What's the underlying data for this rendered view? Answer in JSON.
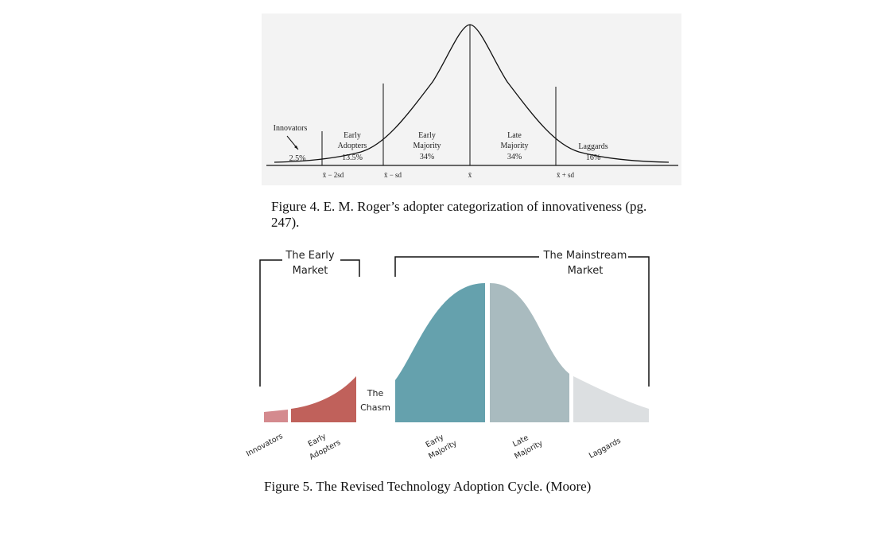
{
  "figure4": {
    "caption": "Figure 4. E. M. Roger’s adopter categorization of innovativeness (pg. 247).",
    "segments": [
      {
        "label_lines": [
          "Innovators"
        ],
        "percent": "2.5%"
      },
      {
        "label_lines": [
          "Early",
          "Adopters"
        ],
        "percent": "13.5%"
      },
      {
        "label_lines": [
          "Early",
          "Majority"
        ],
        "percent": "34%"
      },
      {
        "label_lines": [
          "Late",
          "Majority"
        ],
        "percent": "34%"
      },
      {
        "label_lines": [
          "Laggards"
        ],
        "percent": "16%"
      }
    ],
    "axis_ticks": [
      "x̄ − 2sd",
      "x̄ − sd",
      "x̄",
      "x̄ + sd"
    ]
  },
  "figure5": {
    "caption": "Figure 5. The Revised Technology Adoption Cycle. (Moore)",
    "early_market_lines": [
      "The Early",
      "Market"
    ],
    "mainstream_market_lines": [
      "The Mainstream",
      "Market"
    ],
    "chasm_lines": [
      "The",
      "Chasm"
    ],
    "segment_labels": [
      [
        "Innovators"
      ],
      [
        "Early",
        "Adopters"
      ],
      [
        "Early",
        "Majority"
      ],
      [
        "Late",
        "Majority"
      ],
      [
        "Laggards"
      ]
    ],
    "colors": {
      "innovators": "#d48a8e",
      "early_adopters": "#c0615b",
      "early_majority": "#65a1ad",
      "late_majority": "#a9bbbf",
      "laggards": "#dcdfe1"
    }
  }
}
